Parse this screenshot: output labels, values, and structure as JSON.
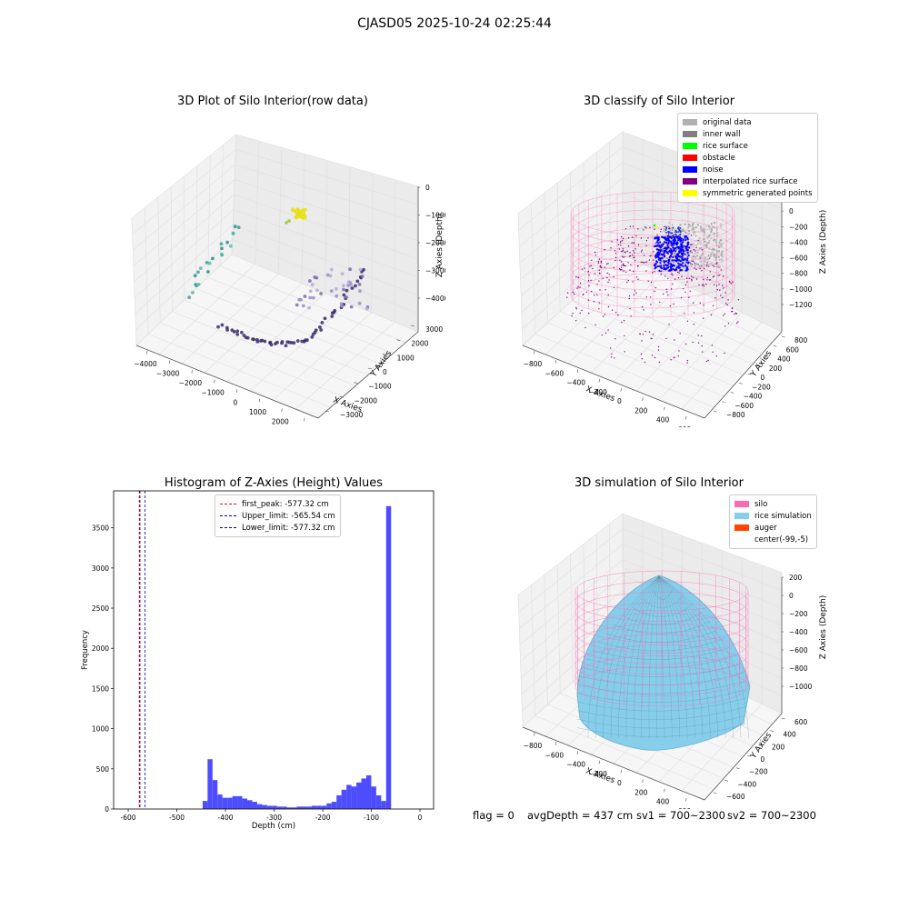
{
  "suptitle": "CJASD05 2025-10-24 02:25:44",
  "footer": {
    "flag": "flag = 0",
    "avg": "avgDepth = 437 cm",
    "sv1": "sv1 = 700~2300",
    "sv2": "sv2 = 700~2300"
  },
  "chart_data": [
    {
      "type": "scatter",
      "title": "3D Plot of Silo Interior(row data)",
      "xlabel": "X Axies",
      "ylabel": "Y Axies",
      "zlabel": "Z Axies (Depth)",
      "x_ticks": [
        "−4000",
        "−3000",
        "−2000",
        "−1000",
        "0",
        "1000",
        "2000",
        "3000"
      ],
      "y_ticks": [
        "−3000",
        "−2000",
        "−1000",
        "0",
        "1000",
        "2000",
        "3000"
      ],
      "z_ticks": [
        "0",
        "−1000",
        "−2000",
        "−3000",
        "−4000"
      ],
      "grid": true
    },
    {
      "type": "scatter",
      "title": "3D classify of Silo Interior",
      "xlabel": "X Axies",
      "ylabel": "Y Axies",
      "zlabel": "Z Axies (Depth)",
      "x_ticks": [
        "−800",
        "−600",
        "−400",
        "−200",
        "0",
        "200",
        "400",
        "600"
      ],
      "y_ticks": [
        "−800",
        "−600",
        "−400",
        "−200",
        "0",
        "200",
        "400",
        "600",
        "800"
      ],
      "z_ticks": [
        "200",
        "0",
        "−200",
        "−400",
        "−600",
        "−800",
        "−1000",
        "−1200"
      ],
      "legend_position": "top-right",
      "legend": [
        {
          "label": "original data",
          "color": "#b0b0b0"
        },
        {
          "label": "inner wall",
          "color": "#808080"
        },
        {
          "label": "rice surface",
          "color": "#00ff00"
        },
        {
          "label": "obstacle",
          "color": "#ff0000"
        },
        {
          "label": "noise",
          "color": "#0000ff"
        },
        {
          "label": "interpolated rice surface",
          "color": "#800080"
        },
        {
          "label": "symmetric generated points",
          "color": "#ffff00"
        }
      ],
      "grid": true
    },
    {
      "type": "bar",
      "title": "Histogram of Z-Axies (Height) Values",
      "xlabel": "Depth (cm)",
      "ylabel": "Frequency",
      "xlim": [
        -630,
        28
      ],
      "ylim": [
        0,
        3960
      ],
      "x_ticks": [
        -600,
        -500,
        -400,
        -300,
        -200,
        -100,
        0
      ],
      "y_ticks": [
        0,
        500,
        1000,
        1500,
        2000,
        2500,
        3000,
        3500
      ],
      "bin_width": 10.2,
      "bin_start": -447,
      "values": [
        100,
        620,
        360,
        180,
        140,
        140,
        160,
        160,
        130,
        110,
        90,
        60,
        50,
        40,
        40,
        30,
        30,
        20,
        20,
        30,
        30,
        30,
        40,
        40,
        40,
        70,
        90,
        170,
        240,
        300,
        280,
        330,
        380,
        420,
        280,
        170,
        100,
        3770
      ],
      "bar_color": "#4d4dff",
      "vlines": [
        {
          "label": "first_peak: -577.32 cm",
          "x": -577.32,
          "color": "#ff0000"
        },
        {
          "label": "Upper_limit: -565.54 cm",
          "x": -565.54,
          "color": "#0000aa"
        },
        {
          "label": "Lower_limit: -577.32 cm",
          "x": -577.32,
          "color": "#0000aa"
        }
      ],
      "legend_position": "top-center"
    },
    {
      "type": "surface",
      "title": "3D simulation of Silo Interior",
      "xlabel": "X Axies",
      "ylabel": "Y Axies",
      "zlabel": "Z Axies (Depth)",
      "x_ticks": [
        "−800",
        "−600",
        "−400",
        "−200",
        "0",
        "200",
        "400",
        "600"
      ],
      "y_ticks": [
        "−600",
        "−400",
        "−200",
        "0",
        "200",
        "400",
        "600"
      ],
      "z_ticks": [
        "200",
        "0",
        "−200",
        "−400",
        "−600",
        "−800",
        "−1000"
      ],
      "legend_position": "top-right",
      "legend": [
        {
          "label": "silo",
          "color": "#ff69b4"
        },
        {
          "label": "rice simulation",
          "color": "#87ceeb"
        },
        {
          "label": "auger",
          "color": "#ff4500"
        },
        {
          "label": "center(-99,-5)",
          "color": "#ffffff"
        }
      ],
      "grid": true
    }
  ]
}
